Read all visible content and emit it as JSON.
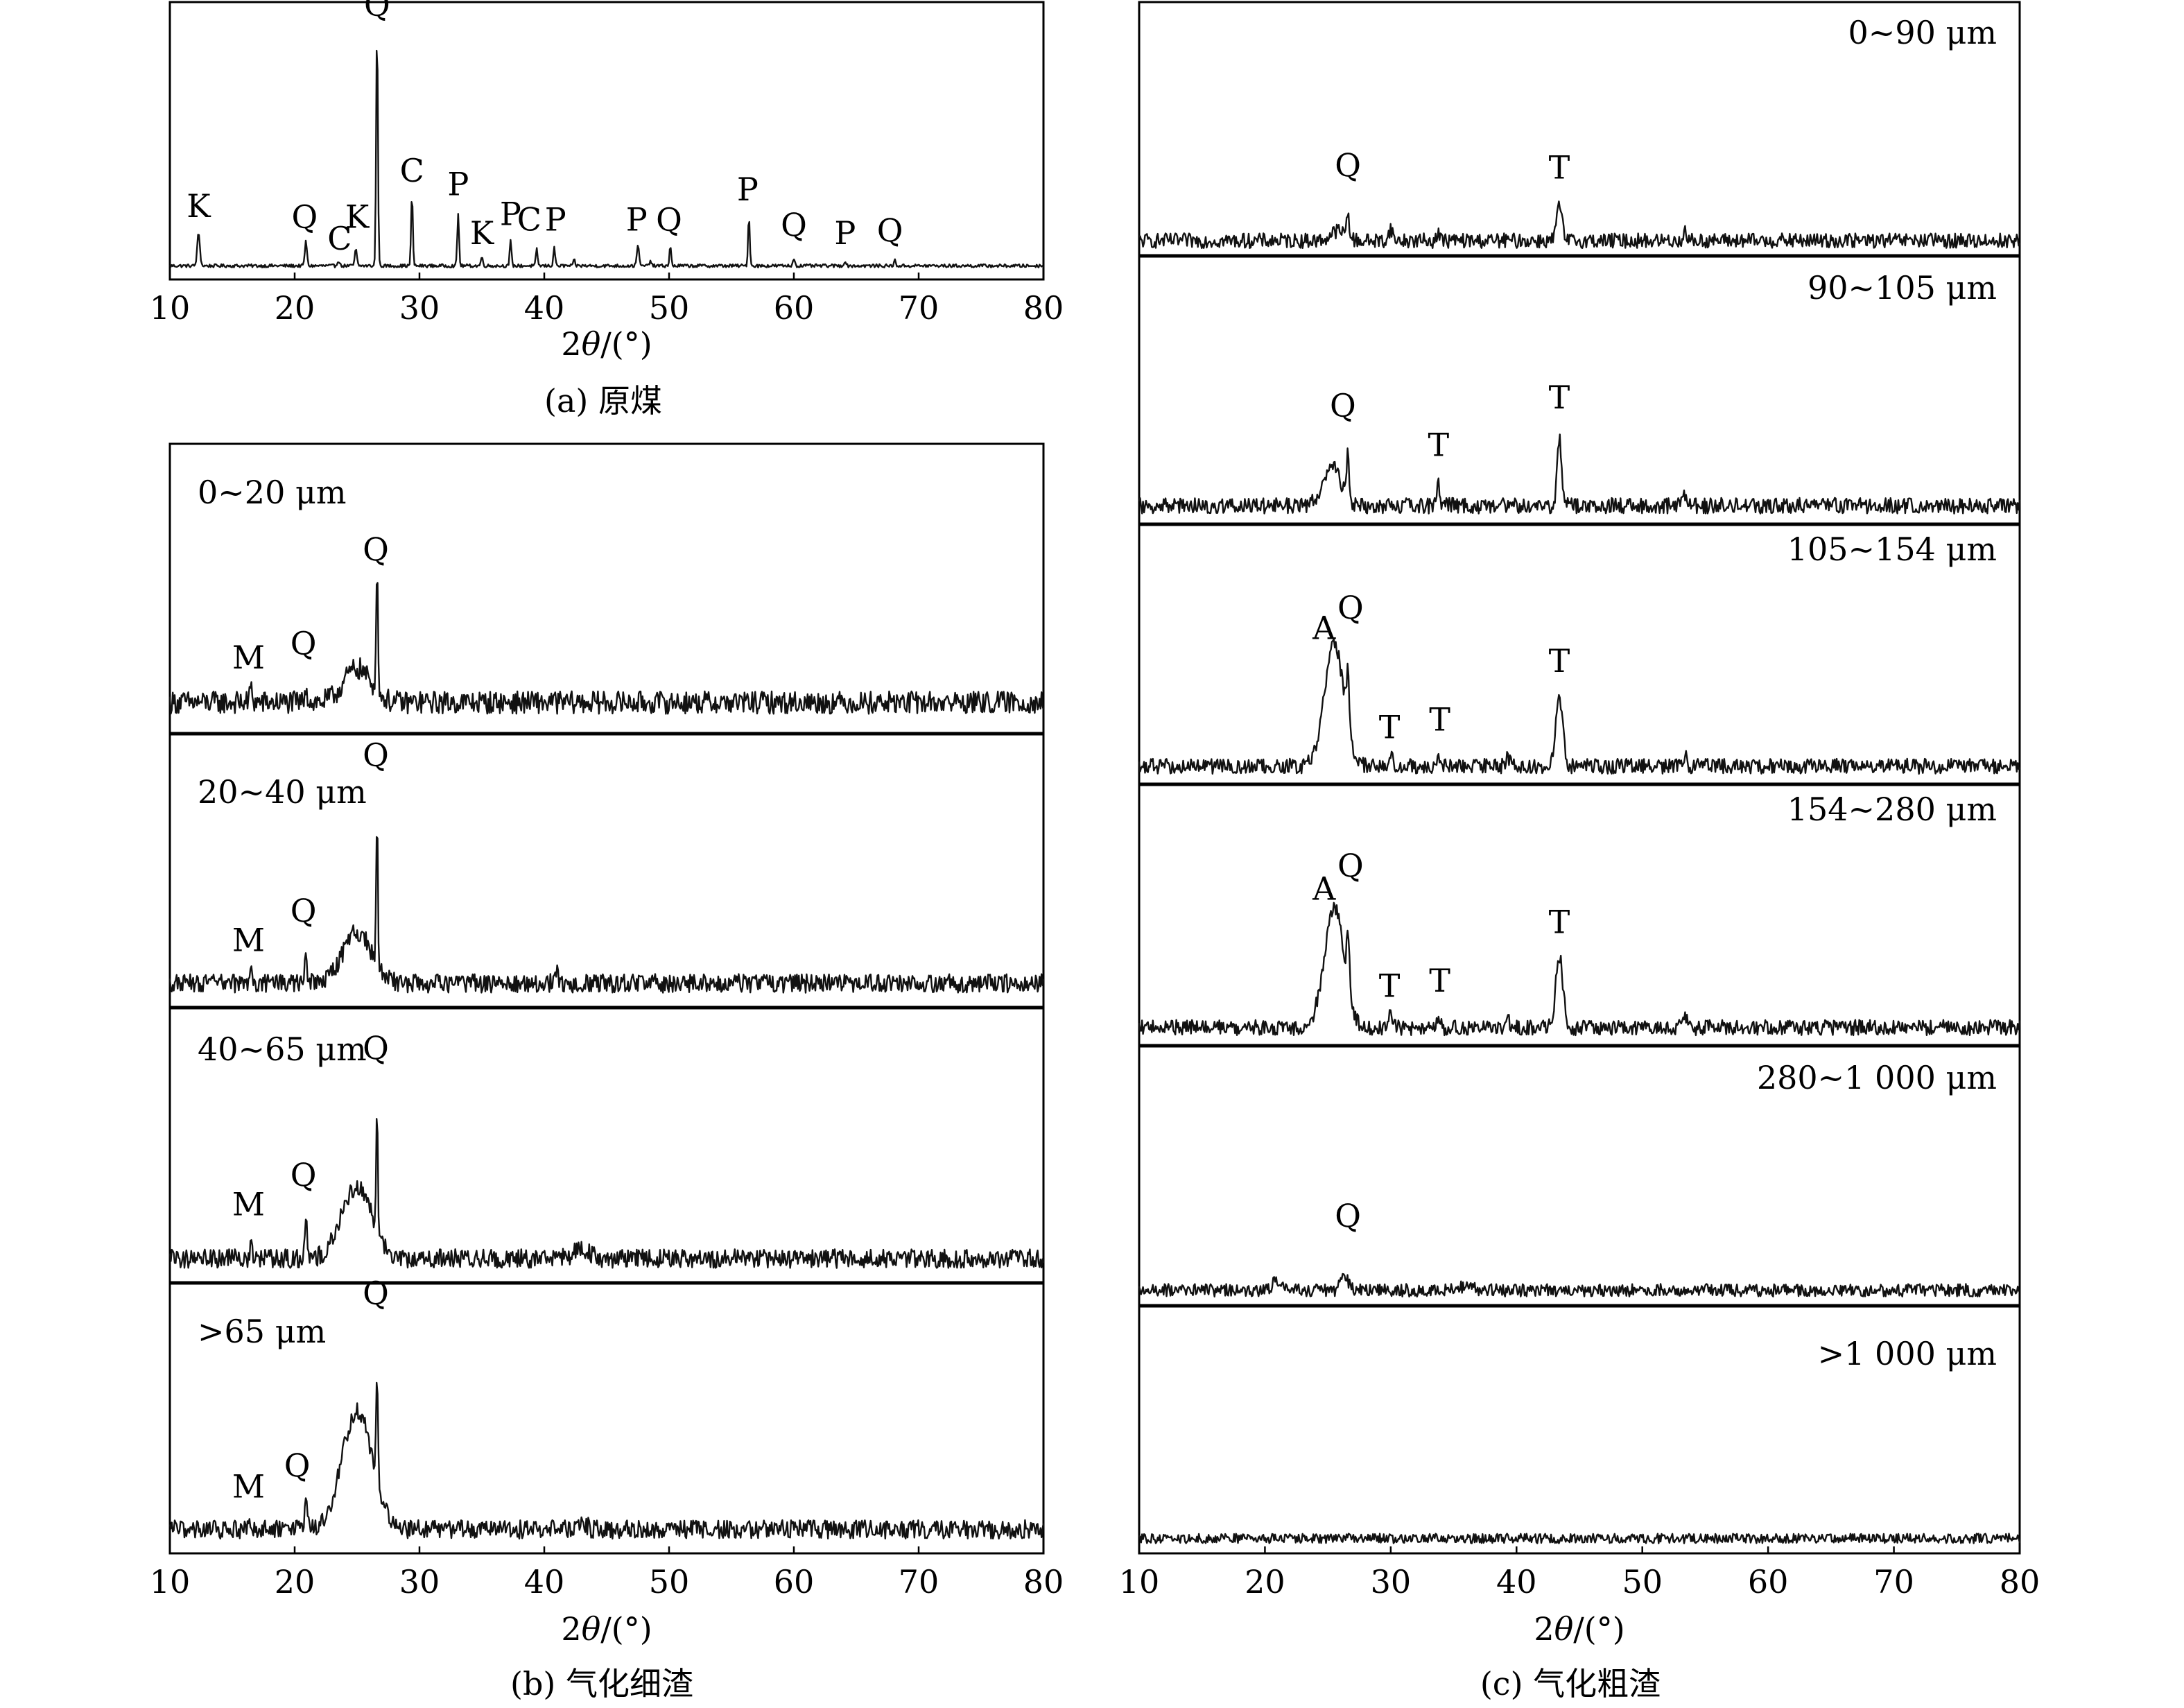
{
  "chart_data": [
    {
      "id": "a",
      "type": "line",
      "caption": "(a) 原煤",
      "xlabel_prefix": "2",
      "xlabel_var": "θ",
      "xlabel_suffix": "/(°)",
      "xlim": [
        10,
        80
      ],
      "xticks": [
        10,
        20,
        30,
        40,
        50,
        60,
        70,
        80
      ],
      "traces": [
        {
          "size_label": "",
          "baseline": 0.04,
          "noise": 0.006,
          "peaks": [
            {
              "x": 12.3,
              "h": 0.12,
              "w": 0.15
            },
            {
              "x": 20.9,
              "h": 0.09,
              "w": 0.12
            },
            {
              "x": 23.5,
              "h": 0.02,
              "w": 0.12
            },
            {
              "x": 24.9,
              "h": 0.06,
              "w": 0.12
            },
            {
              "x": 26.6,
              "h": 0.88,
              "w": 0.1
            },
            {
              "x": 29.4,
              "h": 0.26,
              "w": 0.1
            },
            {
              "x": 33.1,
              "h": 0.19,
              "w": 0.1
            },
            {
              "x": 35.0,
              "h": 0.03,
              "w": 0.12
            },
            {
              "x": 37.3,
              "h": 0.09,
              "w": 0.1
            },
            {
              "x": 39.4,
              "h": 0.06,
              "w": 0.1
            },
            {
              "x": 40.8,
              "h": 0.07,
              "w": 0.1
            },
            {
              "x": 42.4,
              "h": 0.02,
              "w": 0.1
            },
            {
              "x": 47.5,
              "h": 0.08,
              "w": 0.12
            },
            {
              "x": 48.5,
              "h": 0.02,
              "w": 0.1
            },
            {
              "x": 50.1,
              "h": 0.07,
              "w": 0.1
            },
            {
              "x": 56.4,
              "h": 0.18,
              "w": 0.1
            },
            {
              "x": 60.0,
              "h": 0.03,
              "w": 0.1
            },
            {
              "x": 64.1,
              "h": 0.02,
              "w": 0.1
            },
            {
              "x": 68.1,
              "h": 0.02,
              "w": 0.1
            }
          ],
          "labels": [
            {
              "text": "K",
              "x": 12.3,
              "y": 0.22
            },
            {
              "text": "Q",
              "x": 20.8,
              "y": 0.18
            },
            {
              "text": "C",
              "x": 23.6,
              "y": 0.1
            },
            {
              "text": "K",
              "x": 25.0,
              "y": 0.18
            },
            {
              "text": "Q",
              "x": 26.6,
              "y": 0.96
            },
            {
              "text": "C",
              "x": 29.4,
              "y": 0.35
            },
            {
              "text": "P",
              "x": 33.1,
              "y": 0.3
            },
            {
              "text": "K",
              "x": 35.0,
              "y": 0.12
            },
            {
              "text": "P",
              "x": 37.3,
              "y": 0.19
            },
            {
              "text": "C",
              "x": 38.8,
              "y": 0.17
            },
            {
              "text": "P",
              "x": 40.9,
              "y": 0.17
            },
            {
              "text": "P",
              "x": 47.4,
              "y": 0.17
            },
            {
              "text": "Q",
              "x": 50.0,
              "y": 0.17
            },
            {
              "text": "P",
              "x": 56.3,
              "y": 0.28
            },
            {
              "text": "Q",
              "x": 60.0,
              "y": 0.15
            },
            {
              "text": "P",
              "x": 64.1,
              "y": 0.12
            },
            {
              "text": "Q",
              "x": 67.7,
              "y": 0.13
            }
          ]
        }
      ]
    },
    {
      "id": "b",
      "type": "line",
      "caption": "(b) 气化细渣",
      "xlabel_prefix": "2",
      "xlabel_var": "θ",
      "xlabel_suffix": "/(°)",
      "xlim": [
        10,
        80
      ],
      "xticks": [
        10,
        20,
        30,
        40,
        50,
        60,
        70,
        80
      ],
      "traces": [
        {
          "size_label": "0~20 μm",
          "baseline": 0.1,
          "noise": 0.04,
          "peaks": [
            {
              "x": 16.5,
              "h": 0.05,
              "w": 0.15
            },
            {
              "x": 20.9,
              "h": 0.06,
              "w": 0.15
            },
            {
              "x": 25.0,
              "h": 0.12,
              "w": 1.5
            },
            {
              "x": 26.6,
              "h": 0.4,
              "w": 0.12
            }
          ],
          "labels": [
            {
              "text": "M",
              "x": 16.3,
              "y": 0.22
            },
            {
              "text": "Q",
              "x": 20.7,
              "y": 0.27
            },
            {
              "text": "Q",
              "x": 26.5,
              "y": 0.6
            }
          ]
        },
        {
          "size_label": "20~40 μm",
          "baseline": 0.08,
          "noise": 0.035,
          "peaks": [
            {
              "x": 16.5,
              "h": 0.04,
              "w": 0.15
            },
            {
              "x": 20.9,
              "h": 0.1,
              "w": 0.12
            },
            {
              "x": 25.0,
              "h": 0.19,
              "w": 1.6
            },
            {
              "x": 26.6,
              "h": 0.55,
              "w": 0.1
            },
            {
              "x": 41.0,
              "h": 0.05,
              "w": 0.15
            }
          ],
          "labels": [
            {
              "text": "M",
              "x": 16.3,
              "y": 0.2
            },
            {
              "text": "Q",
              "x": 20.7,
              "y": 0.31
            },
            {
              "text": "Q",
              "x": 26.5,
              "y": 0.89
            }
          ]
        },
        {
          "size_label": "40~65 μm",
          "baseline": 0.08,
          "noise": 0.035,
          "peaks": [
            {
              "x": 16.5,
              "h": 0.04,
              "w": 0.15
            },
            {
              "x": 20.9,
              "h": 0.16,
              "w": 0.12
            },
            {
              "x": 25.0,
              "h": 0.27,
              "w": 1.7
            },
            {
              "x": 26.6,
              "h": 0.42,
              "w": 0.1
            },
            {
              "x": 43.0,
              "h": 0.03,
              "w": 1.0
            }
          ],
          "labels": [
            {
              "text": "M",
              "x": 16.3,
              "y": 0.24
            },
            {
              "text": "Q",
              "x": 20.7,
              "y": 0.35
            },
            {
              "text": "Q",
              "x": 26.5,
              "y": 0.82
            }
          ]
        },
        {
          "size_label": ">65 μm",
          "baseline": 0.08,
          "noise": 0.035,
          "peaks": [
            {
              "x": 16.5,
              "h": 0.04,
              "w": 0.15
            },
            {
              "x": 20.9,
              "h": 0.09,
              "w": 0.15
            },
            {
              "x": 25.0,
              "h": 0.45,
              "w": 1.7
            },
            {
              "x": 26.6,
              "h": 0.4,
              "w": 0.1
            },
            {
              "x": 43.0,
              "h": 0.03,
              "w": 0.5
            }
          ],
          "labels": [
            {
              "text": "M",
              "x": 16.3,
              "y": 0.2
            },
            {
              "text": "Q",
              "x": 20.2,
              "y": 0.28
            },
            {
              "text": "Q",
              "x": 26.5,
              "y": 0.93
            }
          ]
        }
      ]
    },
    {
      "id": "c",
      "type": "line",
      "caption": "(c) 气化粗渣",
      "xlabel_prefix": "2",
      "xlabel_var": "θ",
      "xlabel_suffix": "/(°)",
      "xlim": [
        10,
        80
      ],
      "xticks": [
        10,
        20,
        30,
        40,
        50,
        60,
        70,
        80
      ],
      "traces": [
        {
          "size_label": "0~90 μm",
          "baseline": 0.05,
          "noise": 0.03,
          "peaks": [
            {
              "x": 25.8,
              "h": 0.04,
              "w": 0.8
            },
            {
              "x": 26.6,
              "h": 0.1,
              "w": 0.15
            },
            {
              "x": 30.0,
              "h": 0.05,
              "w": 0.2
            },
            {
              "x": 33.8,
              "h": 0.04,
              "w": 0.15
            },
            {
              "x": 43.4,
              "h": 0.14,
              "w": 0.3
            },
            {
              "x": 53.4,
              "h": 0.04,
              "w": 0.2
            }
          ],
          "labels": [
            {
              "text": "Q",
              "x": 26.6,
              "y": 0.31
            },
            {
              "text": "T",
              "x": 43.4,
              "y": 0.3
            }
          ]
        },
        {
          "size_label": "90~105 μm",
          "baseline": 0.06,
          "noise": 0.03,
          "peaks": [
            {
              "x": 25.3,
              "h": 0.15,
              "w": 1.0
            },
            {
              "x": 26.6,
              "h": 0.17,
              "w": 0.15
            },
            {
              "x": 33.8,
              "h": 0.1,
              "w": 0.12
            },
            {
              "x": 43.4,
              "h": 0.25,
              "w": 0.25
            },
            {
              "x": 53.4,
              "h": 0.04,
              "w": 0.2
            }
          ],
          "labels": [
            {
              "text": "Q",
              "x": 26.2,
              "y": 0.4
            },
            {
              "text": "T",
              "x": 33.8,
              "y": 0.25
            },
            {
              "text": "T",
              "x": 43.4,
              "y": 0.43
            }
          ]
        },
        {
          "size_label": "105~154 μm",
          "baseline": 0.06,
          "noise": 0.03,
          "peaks": [
            {
              "x": 25.5,
              "h": 0.48,
              "w": 1.1
            },
            {
              "x": 26.6,
              "h": 0.22,
              "w": 0.15
            },
            {
              "x": 30.0,
              "h": 0.06,
              "w": 0.25
            },
            {
              "x": 33.8,
              "h": 0.05,
              "w": 0.15
            },
            {
              "x": 39.3,
              "h": 0.03,
              "w": 0.3
            },
            {
              "x": 43.4,
              "h": 0.27,
              "w": 0.4
            },
            {
              "x": 53.4,
              "h": 0.04,
              "w": 0.2
            }
          ],
          "labels": [
            {
              "text": "A",
              "x": 24.7,
              "y": 0.56
            },
            {
              "text": "Q",
              "x": 26.8,
              "y": 0.64
            },
            {
              "text": "T",
              "x": 29.9,
              "y": 0.17
            },
            {
              "text": "T",
              "x": 33.9,
              "y": 0.2
            },
            {
              "text": "T",
              "x": 43.4,
              "y": 0.43
            }
          ]
        },
        {
          "size_label": "154~280 μm",
          "baseline": 0.06,
          "noise": 0.03,
          "peaks": [
            {
              "x": 25.5,
              "h": 0.47,
              "w": 1.1
            },
            {
              "x": 26.6,
              "h": 0.22,
              "w": 0.15
            },
            {
              "x": 30.0,
              "h": 0.06,
              "w": 0.25
            },
            {
              "x": 33.8,
              "h": 0.05,
              "w": 0.15
            },
            {
              "x": 39.3,
              "h": 0.03,
              "w": 0.3
            },
            {
              "x": 43.4,
              "h": 0.28,
              "w": 0.4
            },
            {
              "x": 53.4,
              "h": 0.04,
              "w": 0.2
            }
          ],
          "labels": [
            {
              "text": "A",
              "x": 24.7,
              "y": 0.56
            },
            {
              "text": "Q",
              "x": 26.8,
              "y": 0.65
            },
            {
              "text": "T",
              "x": 29.9,
              "y": 0.18
            },
            {
              "text": "T",
              "x": 33.9,
              "y": 0.2
            },
            {
              "text": "T",
              "x": 43.4,
              "y": 0.43
            }
          ]
        },
        {
          "size_label": "280~1 000 μm",
          "baseline": 0.05,
          "noise": 0.025,
          "peaks": [
            {
              "x": 21.0,
              "h": 0.04,
              "w": 0.5
            },
            {
              "x": 26.3,
              "h": 0.06,
              "w": 0.4
            },
            {
              "x": 36.0,
              "h": 0.02,
              "w": 0.6
            }
          ],
          "labels": [
            {
              "text": "Q",
              "x": 26.6,
              "y": 0.3
            }
          ]
        },
        {
          "size_label": ">1 000 μm",
          "baseline": 0.05,
          "noise": 0.02,
          "peaks": [],
          "labels": []
        }
      ]
    }
  ]
}
